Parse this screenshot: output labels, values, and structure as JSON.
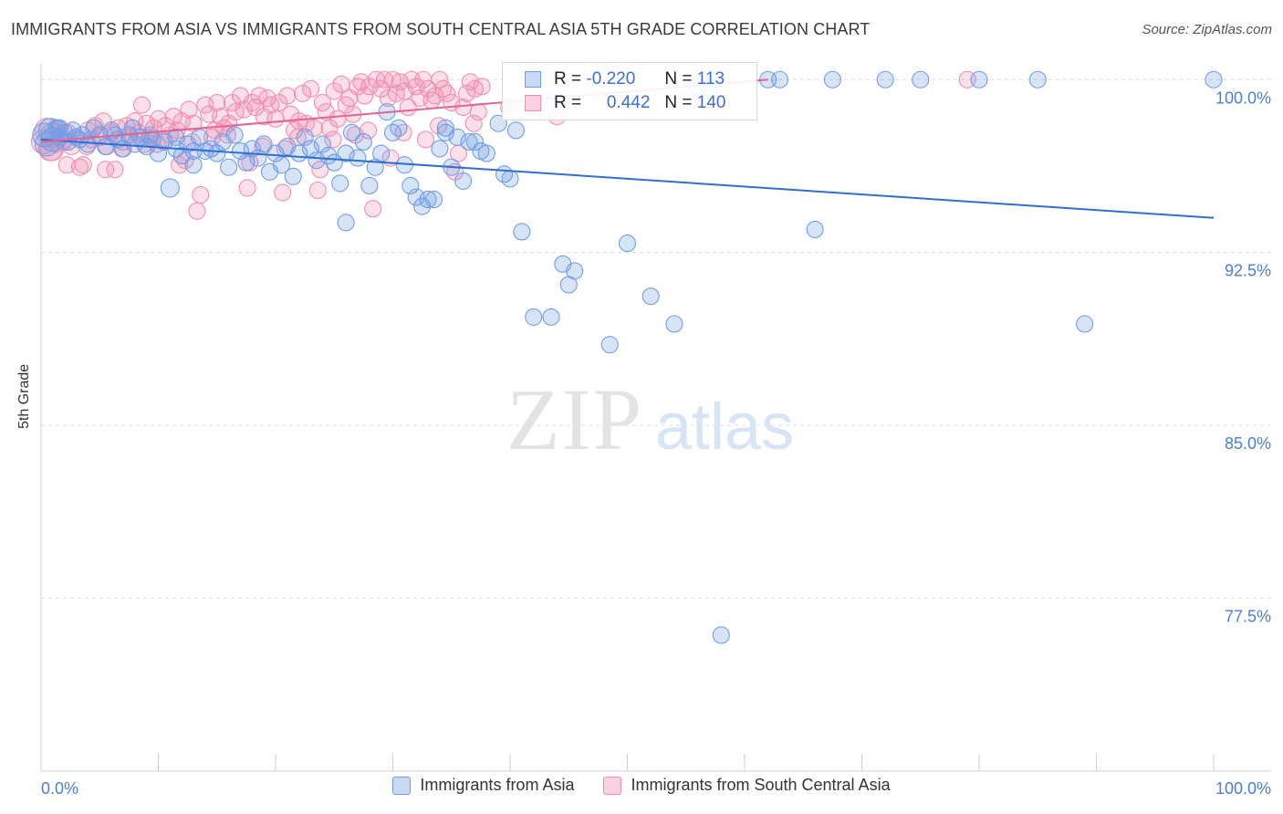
{
  "title": "IMMIGRANTS FROM ASIA VS IMMIGRANTS FROM SOUTH CENTRAL ASIA 5TH GRADE CORRELATION CHART",
  "source": "Source: ZipAtlas.com",
  "watermark": {
    "zip": "ZIP",
    "atlas": "atlas"
  },
  "colors": {
    "blue": "#6f9ee6",
    "pink": "#f28db0",
    "blue_line": "#2f6fd1",
    "pink_line": "#e8628e",
    "tick_text": "#4a7fd6"
  },
  "legend": {
    "r_label": "R =",
    "n_label": "N =",
    "rows": [
      {
        "r": "-0.220",
        "n": "113",
        "color": "#6f9ee6"
      },
      {
        "r": "0.442",
        "n": "140",
        "color": "#f28db0"
      }
    ]
  },
  "bottom_legend": [
    {
      "label": "Immigrants from Asia",
      "color": "#6f9ee6"
    },
    {
      "label": "Immigrants from South Central Asia",
      "color": "#f28db0"
    }
  ],
  "chart_data": {
    "type": "scatter",
    "title": "IMMIGRANTS FROM ASIA VS IMMIGRANTS FROM SOUTH CENTRAL ASIA 5TH GRADE CORRELATION CHART",
    "xlabel": "",
    "ylabel": "5th Grade",
    "xlim": [
      0,
      100
    ],
    "ylim": [
      70.0,
      101.0
    ],
    "x_tick_labels": [
      "0.0%",
      "100.0%"
    ],
    "y_ticks": [
      {
        "value": 100.0,
        "label": "100.0%"
      },
      {
        "value": 92.5,
        "label": "92.5%"
      },
      {
        "value": 85.0,
        "label": "85.0%"
      },
      {
        "value": 77.5,
        "label": "77.5%"
      }
    ],
    "grid": true,
    "legend_position": "top-center",
    "series": [
      {
        "name": "Immigrants from Asia",
        "color": "#6f9ee6",
        "trend": {
          "x": [
            0,
            100
          ],
          "y": [
            97.4,
            94.0
          ]
        },
        "points": [
          [
            0.3,
            97.6
          ],
          [
            0.5,
            97.2
          ],
          [
            0.8,
            97.8
          ],
          [
            1.0,
            97.4
          ],
          [
            1.3,
            97.9
          ],
          [
            1.6,
            97.5
          ],
          [
            2.0,
            97.7
          ],
          [
            2.3,
            97.3
          ],
          [
            2.7,
            97.8
          ],
          [
            3.0,
            97.5
          ],
          [
            3.5,
            97.6
          ],
          [
            4.0,
            97.2
          ],
          [
            4.5,
            97.9
          ],
          [
            5.0,
            97.6
          ],
          [
            5.5,
            97.1
          ],
          [
            6.0,
            97.8
          ],
          [
            6.5,
            97.4
          ],
          [
            7.0,
            97.0
          ],
          [
            7.5,
            97.6
          ],
          [
            8.0,
            97.2
          ],
          [
            8.5,
            97.5
          ],
          [
            9.0,
            97.1
          ],
          [
            9.5,
            97.4
          ],
          [
            10.0,
            96.8
          ],
          [
            10.5,
            97.3
          ],
          [
            11.0,
            95.3
          ],
          [
            11.5,
            97.0
          ],
          [
            12.0,
            96.7
          ],
          [
            12.5,
            97.2
          ],
          [
            13.0,
            96.3
          ],
          [
            13.5,
            97.5
          ],
          [
            14.0,
            96.9
          ],
          [
            14.5,
            97.0
          ],
          [
            15.0,
            96.8
          ],
          [
            15.5,
            97.3
          ],
          [
            16.0,
            96.2
          ],
          [
            16.5,
            97.6
          ],
          [
            17.0,
            96.9
          ],
          [
            17.5,
            96.4
          ],
          [
            18.0,
            97.0
          ],
          [
            18.5,
            96.6
          ],
          [
            19.0,
            97.2
          ],
          [
            19.5,
            96.0
          ],
          [
            20.0,
            96.8
          ],
          [
            20.5,
            96.3
          ],
          [
            21.0,
            97.1
          ],
          [
            21.5,
            95.8
          ],
          [
            22.0,
            96.8
          ],
          [
            22.5,
            97.5
          ],
          [
            23.0,
            97.0
          ],
          [
            23.5,
            96.5
          ],
          [
            24.0,
            97.2
          ],
          [
            24.5,
            96.7
          ],
          [
            25.0,
            96.4
          ],
          [
            25.5,
            95.5
          ],
          [
            26.0,
            96.8
          ],
          [
            26.5,
            97.7
          ],
          [
            27.0,
            96.6
          ],
          [
            27.5,
            97.3
          ],
          [
            28.0,
            95.4
          ],
          [
            28.5,
            96.2
          ],
          [
            29.0,
            96.8
          ],
          [
            29.5,
            98.6
          ],
          [
            30.0,
            97.7
          ],
          [
            30.5,
            97.9
          ],
          [
            31.0,
            96.3
          ],
          [
            31.5,
            95.4
          ],
          [
            32.0,
            94.9
          ],
          [
            32.5,
            94.5
          ],
          [
            33.0,
            94.8
          ],
          [
            33.5,
            94.8
          ],
          [
            34.0,
            97.0
          ],
          [
            34.5,
            97.9
          ],
          [
            35.0,
            96.2
          ],
          [
            35.5,
            97.5
          ],
          [
            36.0,
            95.6
          ],
          [
            36.5,
            97.3
          ],
          [
            37.0,
            97.3
          ],
          [
            37.5,
            96.9
          ],
          [
            38.0,
            96.8
          ],
          [
            39.0,
            98.1
          ],
          [
            39.5,
            95.9
          ],
          [
            40.0,
            95.7
          ],
          [
            40.5,
            97.8
          ],
          [
            41.0,
            93.4
          ],
          [
            44.5,
            92.0
          ],
          [
            45.0,
            91.1
          ],
          [
            45.5,
            91.7
          ],
          [
            42.0,
            89.7
          ],
          [
            43.5,
            89.7
          ],
          [
            48.5,
            88.5
          ],
          [
            50.0,
            92.9
          ],
          [
            52.0,
            90.6
          ],
          [
            54.0,
            89.4
          ],
          [
            56.0,
            99.7
          ],
          [
            57.0,
            99.6
          ],
          [
            57.5,
            100.0
          ],
          [
            62.0,
            100.0
          ],
          [
            63.0,
            100.0
          ],
          [
            67.5,
            100.0
          ],
          [
            72.0,
            100.0
          ],
          [
            75.0,
            100.0
          ],
          [
            80.0,
            100.0
          ],
          [
            85.0,
            100.0
          ],
          [
            89.0,
            89.4
          ],
          [
            100.0,
            100.0
          ],
          [
            66.0,
            93.5
          ],
          [
            58.0,
            75.9
          ],
          [
            26.0,
            93.8
          ],
          [
            34.5,
            97.7
          ],
          [
            13.0,
            96.9
          ],
          [
            11.5,
            97.5
          ],
          [
            1.5,
            97.9
          ],
          [
            3.3,
            97.4
          ],
          [
            6.3,
            97.6
          ],
          [
            7.8,
            97.9
          ],
          [
            9.3,
            97.6
          ]
        ]
      },
      {
        "name": "Immigrants from South Central Asia",
        "color": "#f28db0",
        "trend": {
          "x": [
            0,
            62
          ],
          "y": [
            97.3,
            100.0
          ]
        },
        "points": [
          [
            0.2,
            97.3
          ],
          [
            0.5,
            97.8
          ],
          [
            0.8,
            97.0
          ],
          [
            1.0,
            97.6
          ],
          [
            1.3,
            97.2
          ],
          [
            1.6,
            97.9
          ],
          [
            2.0,
            97.4
          ],
          [
            2.3,
            97.7
          ],
          [
            2.6,
            97.1
          ],
          [
            3.0,
            97.5
          ],
          [
            3.3,
            96.2
          ],
          [
            3.6,
            96.3
          ],
          [
            4.0,
            97.8
          ],
          [
            4.3,
            97.4
          ],
          [
            4.6,
            98.0
          ],
          [
            5.0,
            97.5
          ],
          [
            5.3,
            98.2
          ],
          [
            5.6,
            97.1
          ],
          [
            6.0,
            97.7
          ],
          [
            6.3,
            96.1
          ],
          [
            6.6,
            97.9
          ],
          [
            7.0,
            97.3
          ],
          [
            7.3,
            98.0
          ],
          [
            7.6,
            97.5
          ],
          [
            8.0,
            98.2
          ],
          [
            8.3,
            97.7
          ],
          [
            8.6,
            98.9
          ],
          [
            9.0,
            98.1
          ],
          [
            9.3,
            97.5
          ],
          [
            9.6,
            97.9
          ],
          [
            10.0,
            98.3
          ],
          [
            10.3,
            97.4
          ],
          [
            10.6,
            98.0
          ],
          [
            11.0,
            97.6
          ],
          [
            11.3,
            98.4
          ],
          [
            11.6,
            97.8
          ],
          [
            12.0,
            98.2
          ],
          [
            12.3,
            96.5
          ],
          [
            12.6,
            98.7
          ],
          [
            13.0,
            98.1
          ],
          [
            13.3,
            94.3
          ],
          [
            13.6,
            95.0
          ],
          [
            14.0,
            98.9
          ],
          [
            14.3,
            98.5
          ],
          [
            14.6,
            97.5
          ],
          [
            15.0,
            99.0
          ],
          [
            15.3,
            98.4
          ],
          [
            15.6,
            97.9
          ],
          [
            16.0,
            98.1
          ],
          [
            16.3,
            99.0
          ],
          [
            16.6,
            98.6
          ],
          [
            17.0,
            99.3
          ],
          [
            17.3,
            98.7
          ],
          [
            17.6,
            95.3
          ],
          [
            18.0,
            99.0
          ],
          [
            18.3,
            98.8
          ],
          [
            18.6,
            99.3
          ],
          [
            19.0,
            98.4
          ],
          [
            19.3,
            99.2
          ],
          [
            19.6,
            98.9
          ],
          [
            20.0,
            98.3
          ],
          [
            20.3,
            99.0
          ],
          [
            20.6,
            95.1
          ],
          [
            21.0,
            99.3
          ],
          [
            21.3,
            98.5
          ],
          [
            21.6,
            97.8
          ],
          [
            22.0,
            98.2
          ],
          [
            22.3,
            99.4
          ],
          [
            22.6,
            98.1
          ],
          [
            23.0,
            99.6
          ],
          [
            23.3,
            97.9
          ],
          [
            23.6,
            95.2
          ],
          [
            24.0,
            99.0
          ],
          [
            24.3,
            98.6
          ],
          [
            24.6,
            97.9
          ],
          [
            25.0,
            99.5
          ],
          [
            25.3,
            98.3
          ],
          [
            25.6,
            99.8
          ],
          [
            26.0,
            98.9
          ],
          [
            26.3,
            99.2
          ],
          [
            26.6,
            98.5
          ],
          [
            27.0,
            99.7
          ],
          [
            27.3,
            99.9
          ],
          [
            27.6,
            99.3
          ],
          [
            28.0,
            99.7
          ],
          [
            28.3,
            94.4
          ],
          [
            28.6,
            100.0
          ],
          [
            29.0,
            99.6
          ],
          [
            29.3,
            100.0
          ],
          [
            29.6,
            99.2
          ],
          [
            30.0,
            100.0
          ],
          [
            30.3,
            99.4
          ],
          [
            30.6,
            99.9
          ],
          [
            31.0,
            99.5
          ],
          [
            31.3,
            98.8
          ],
          [
            31.6,
            100.0
          ],
          [
            32.0,
            99.7
          ],
          [
            32.3,
            99.2
          ],
          [
            32.6,
            100.0
          ],
          [
            33.0,
            99.6
          ],
          [
            33.3,
            99.1
          ],
          [
            33.6,
            99.3
          ],
          [
            34.0,
            100.0
          ],
          [
            34.3,
            99.6
          ],
          [
            34.6,
            99.4
          ],
          [
            35.0,
            99.0
          ],
          [
            35.3,
            96.0
          ],
          [
            35.6,
            96.8
          ],
          [
            36.0,
            98.8
          ],
          [
            36.3,
            99.4
          ],
          [
            36.6,
            99.9
          ],
          [
            37.0,
            99.6
          ],
          [
            37.3,
            98.6
          ],
          [
            37.6,
            99.7
          ],
          [
            2.2,
            96.3
          ],
          [
            5.5,
            96.1
          ],
          [
            8.8,
            97.2
          ],
          [
            11.8,
            96.3
          ],
          [
            14.8,
            97.8
          ],
          [
            17.8,
            96.4
          ],
          [
            20.8,
            97.0
          ],
          [
            23.8,
            96.1
          ],
          [
            26.8,
            97.6
          ],
          [
            29.8,
            96.6
          ],
          [
            32.8,
            97.4
          ],
          [
            0.9,
            97.0
          ],
          [
            1.9,
            97.3
          ],
          [
            3.9,
            97.1
          ],
          [
            6.9,
            97.0
          ],
          [
            9.9,
            97.2
          ],
          [
            12.9,
            97.3
          ],
          [
            15.9,
            97.6
          ],
          [
            18.9,
            97.1
          ],
          [
            21.9,
            97.5
          ],
          [
            24.9,
            97.4
          ],
          [
            27.9,
            97.8
          ],
          [
            30.9,
            97.7
          ],
          [
            33.9,
            98.0
          ],
          [
            36.9,
            98.1
          ],
          [
            39.9,
            98.8
          ],
          [
            44.0,
            98.4
          ],
          [
            79.0,
            100.0
          ]
        ]
      }
    ]
  }
}
